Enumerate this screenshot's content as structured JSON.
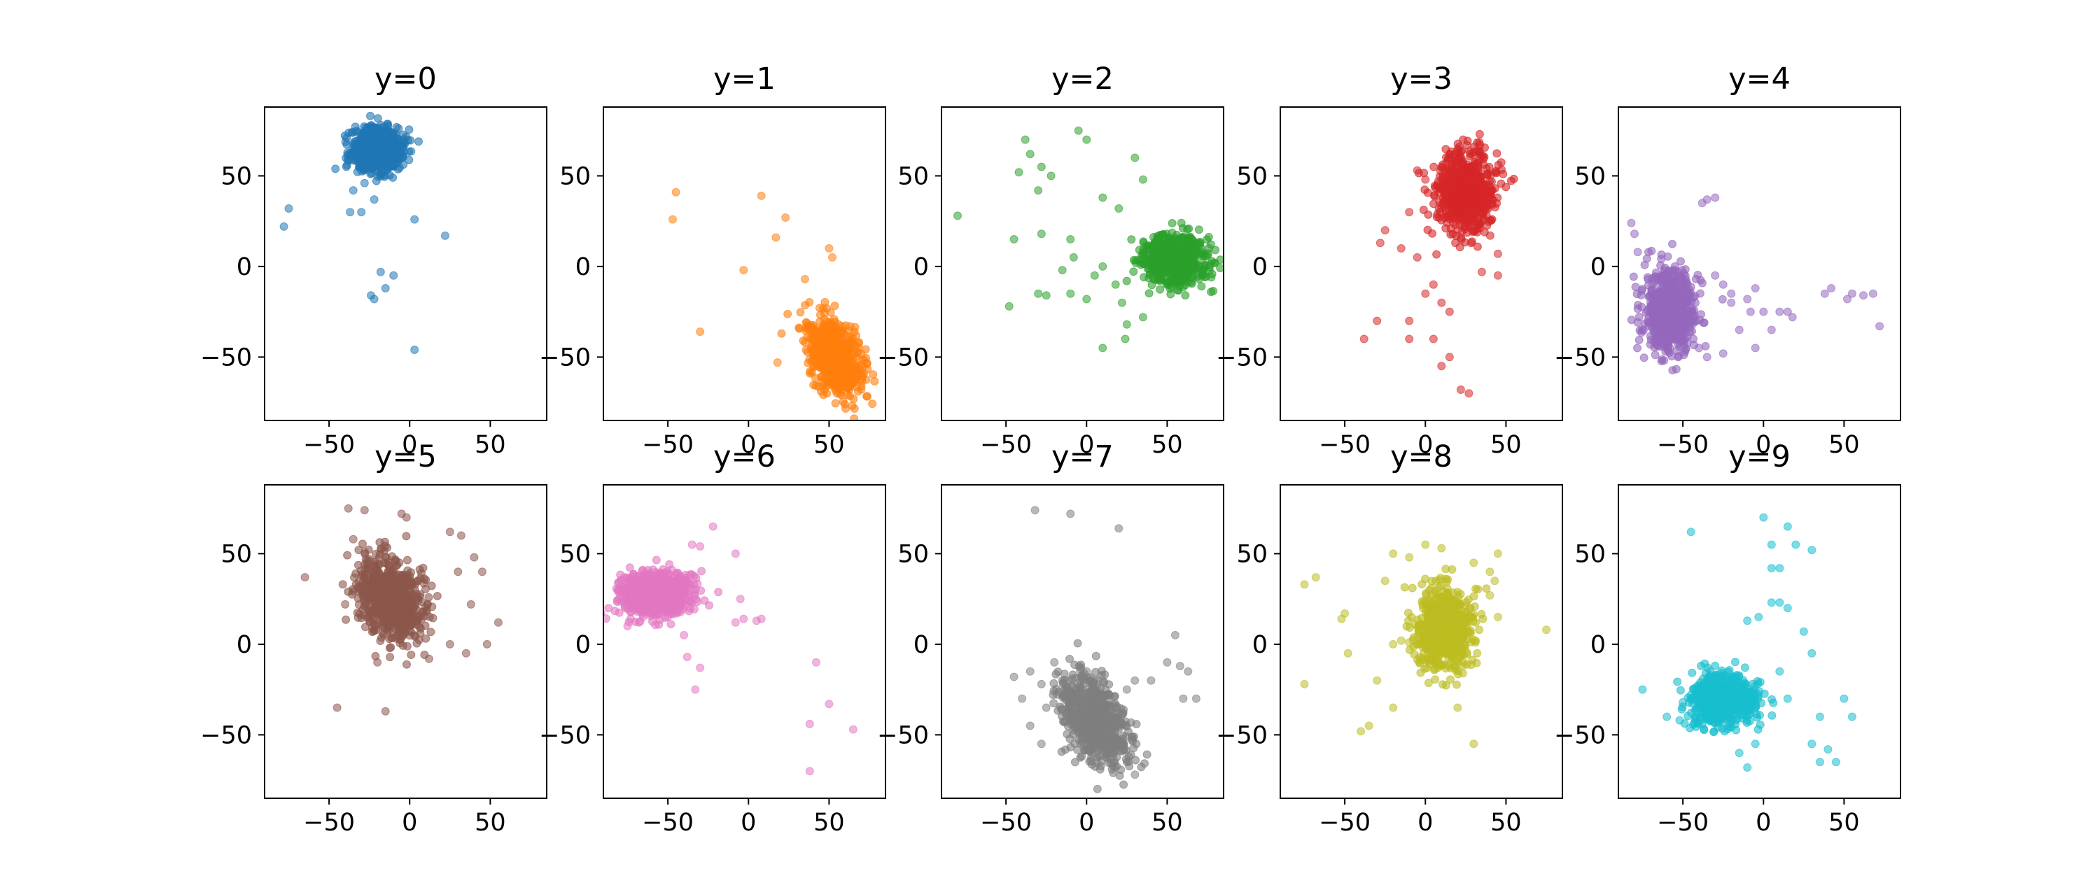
{
  "chart_data": [
    {
      "type": "scatter",
      "title": "y=0",
      "color": "#1f77b4",
      "xlim": [
        -90,
        85
      ],
      "ylim": [
        -85,
        88
      ],
      "xticks": [
        -50,
        0,
        50
      ],
      "yticks": [
        -50,
        0,
        50
      ],
      "cluster": {
        "cx": -20,
        "cy": 65,
        "sx": 8,
        "sy": 6,
        "n": 700,
        "rot": 0
      },
      "outliers": [
        [
          -75,
          32
        ],
        [
          -78,
          22
        ],
        [
          -35,
          42
        ],
        [
          -37,
          30
        ],
        [
          -30,
          30
        ],
        [
          -28,
          46
        ],
        [
          -22,
          37
        ],
        [
          3,
          26
        ],
        [
          22,
          17
        ],
        [
          -18,
          -3
        ],
        [
          -10,
          -5
        ],
        [
          -15,
          -12
        ],
        [
          -24,
          -16
        ],
        [
          -22,
          -18
        ],
        [
          3,
          -46
        ]
      ]
    },
    {
      "type": "scatter",
      "title": "y=1",
      "color": "#ff7f0e",
      "xlim": [
        -90,
        85
      ],
      "ylim": [
        -85,
        88
      ],
      "xticks": [
        -50,
        0,
        50
      ],
      "yticks": [
        -50,
        0,
        50
      ],
      "cluster": {
        "cx": 53,
        "cy": -50,
        "sx": 7,
        "sy": 11,
        "n": 700,
        "rot": 0.6
      },
      "outliers": [
        [
          -45,
          41
        ],
        [
          -47,
          26
        ],
        [
          8,
          39
        ],
        [
          23,
          27
        ],
        [
          17,
          16
        ],
        [
          50,
          10
        ],
        [
          52,
          5
        ],
        [
          35,
          -7
        ],
        [
          -3,
          -2
        ],
        [
          -30,
          -36
        ],
        [
          18,
          -53
        ]
      ]
    },
    {
      "type": "scatter",
      "title": "y=2",
      "color": "#2ca02c",
      "xlim": [
        -90,
        85
      ],
      "ylim": [
        -85,
        88
      ],
      "xticks": [
        -50,
        0,
        50
      ],
      "yticks": [
        -50,
        0,
        50
      ],
      "cluster": {
        "cx": 55,
        "cy": 3,
        "sx": 10,
        "sy": 7,
        "n": 700,
        "rot": 0
      },
      "outliers": [
        [
          -80,
          28
        ],
        [
          -38,
          70
        ],
        [
          -35,
          62
        ],
        [
          -28,
          55
        ],
        [
          -42,
          52
        ],
        [
          -30,
          42
        ],
        [
          -22,
          50
        ],
        [
          -5,
          75
        ],
        [
          0,
          70
        ],
        [
          30,
          60
        ],
        [
          35,
          48
        ],
        [
          10,
          38
        ],
        [
          20,
          32
        ],
        [
          -45,
          15
        ],
        [
          -28,
          18
        ],
        [
          -10,
          15
        ],
        [
          -8,
          5
        ],
        [
          5,
          -5
        ],
        [
          10,
          0
        ],
        [
          18,
          -10
        ],
        [
          22,
          -20
        ],
        [
          -48,
          -22
        ],
        [
          -30,
          -15
        ],
        [
          -25,
          -16
        ],
        [
          -10,
          -15
        ],
        [
          0,
          -18
        ],
        [
          25,
          -32
        ],
        [
          24,
          -40
        ],
        [
          10,
          -45
        ],
        [
          35,
          -28
        ],
        [
          -15,
          -2
        ]
      ]
    },
    {
      "type": "scatter",
      "title": "y=3",
      "color": "#d62728",
      "xlim": [
        -90,
        85
      ],
      "ylim": [
        -85,
        88
      ],
      "xticks": [
        -50,
        0,
        50
      ],
      "yticks": [
        -50,
        0,
        50
      ],
      "cluster": {
        "cx": 25,
        "cy": 42,
        "sx": 9,
        "sy": 11,
        "n": 700,
        "rot": 0
      },
      "outliers": [
        [
          -5,
          53
        ],
        [
          0,
          48
        ],
        [
          -10,
          30
        ],
        [
          -25,
          20
        ],
        [
          -28,
          13
        ],
        [
          -15,
          10
        ],
        [
          -5,
          5
        ],
        [
          5,
          -10
        ],
        [
          0,
          -15
        ],
        [
          10,
          -20
        ],
        [
          15,
          -25
        ],
        [
          -10,
          -30
        ],
        [
          -30,
          -30
        ],
        [
          -38,
          -40
        ],
        [
          -10,
          -40
        ],
        [
          5,
          -40
        ],
        [
          15,
          -50
        ],
        [
          10,
          -55
        ],
        [
          22,
          -68
        ],
        [
          27,
          -70
        ],
        [
          45,
          -5
        ],
        [
          35,
          -3
        ],
        [
          45,
          7
        ],
        [
          20,
          20
        ]
      ]
    },
    {
      "type": "scatter",
      "title": "y=4",
      "color": "#9467bd",
      "xlim": [
        -90,
        85
      ],
      "ylim": [
        -85,
        88
      ],
      "xticks": [
        -50,
        0,
        50
      ],
      "yticks": [
        -50,
        0,
        50
      ],
      "cluster": {
        "cx": -58,
        "cy": -25,
        "sx": 8,
        "sy": 11,
        "n": 700,
        "rot": 0
      },
      "outliers": [
        [
          -82,
          24
        ],
        [
          -78,
          8
        ],
        [
          -80,
          18
        ],
        [
          -35,
          37
        ],
        [
          -30,
          38
        ],
        [
          -38,
          35
        ],
        [
          -30,
          -5
        ],
        [
          -25,
          -10
        ],
        [
          -20,
          -15
        ],
        [
          -10,
          -18
        ],
        [
          -8,
          -25
        ],
        [
          0,
          -25
        ],
        [
          10,
          -25
        ],
        [
          -15,
          -35
        ],
        [
          -25,
          -48
        ],
        [
          -35,
          -50
        ],
        [
          -40,
          -45
        ],
        [
          -5,
          -45
        ],
        [
          5,
          -35
        ],
        [
          15,
          -25
        ],
        [
          18,
          -28
        ],
        [
          38,
          -15
        ],
        [
          42,
          -12
        ],
        [
          55,
          -15
        ],
        [
          52,
          -18
        ],
        [
          68,
          -15
        ],
        [
          62,
          -16
        ],
        [
          72,
          -33
        ],
        [
          -20,
          -20
        ],
        [
          -5,
          -12
        ]
      ]
    },
    {
      "type": "scatter",
      "title": "y=5",
      "color": "#8c564b",
      "xlim": [
        -90,
        85
      ],
      "ylim": [
        -85,
        88
      ],
      "xticks": [
        -50,
        0,
        50
      ],
      "yticks": [
        -50,
        0,
        50
      ],
      "cluster": {
        "cx": -12,
        "cy": 25,
        "sx": 9,
        "sy": 12,
        "n": 700,
        "rot": 0.55
      },
      "outliers": [
        [
          -65,
          37
        ],
        [
          -38,
          75
        ],
        [
          -28,
          74
        ],
        [
          -5,
          72
        ],
        [
          -2,
          70
        ],
        [
          -35,
          58
        ],
        [
          -30,
          30
        ],
        [
          -40,
          22
        ],
        [
          -20,
          -10
        ],
        [
          -15,
          -37
        ],
        [
          -45,
          -35
        ],
        [
          25,
          62
        ],
        [
          32,
          60
        ],
        [
          40,
          48
        ],
        [
          45,
          40
        ],
        [
          30,
          40
        ],
        [
          38,
          22
        ],
        [
          35,
          -5
        ],
        [
          48,
          0
        ],
        [
          55,
          12
        ],
        [
          25,
          0
        ],
        [
          12,
          -8
        ]
      ]
    },
    {
      "type": "scatter",
      "title": "y=6",
      "color": "#e377c2",
      "xlim": [
        -90,
        85
      ],
      "ylim": [
        -85,
        88
      ],
      "xticks": [
        -50,
        0,
        50
      ],
      "yticks": [
        -50,
        0,
        50
      ],
      "cluster": {
        "cx": -58,
        "cy": 28,
        "sx": 12,
        "sy": 6,
        "n": 700,
        "rot": 0
      },
      "outliers": [
        [
          -75,
          10
        ],
        [
          -68,
          12
        ],
        [
          -30,
          54
        ],
        [
          -22,
          65
        ],
        [
          -35,
          55
        ],
        [
          -8,
          50
        ],
        [
          -5,
          25
        ],
        [
          -8,
          12
        ],
        [
          -3,
          14
        ],
        [
          5,
          13
        ],
        [
          8,
          14
        ],
        [
          -40,
          5
        ],
        [
          -38,
          -7
        ],
        [
          -30,
          -13
        ],
        [
          -33,
          -25
        ],
        [
          42,
          -10
        ],
        [
          50,
          -33
        ],
        [
          38,
          -44
        ],
        [
          65,
          -47
        ],
        [
          38,
          -70
        ]
      ]
    },
    {
      "type": "scatter",
      "title": "y=7",
      "color": "#7f7f7f",
      "xlim": [
        -90,
        85
      ],
      "ylim": [
        -85,
        88
      ],
      "xticks": [
        -50,
        0,
        50
      ],
      "yticks": [
        -50,
        0,
        50
      ],
      "cluster": {
        "cx": 5,
        "cy": -42,
        "sx": 8,
        "sy": 14,
        "n": 700,
        "rot": 0.6
      },
      "outliers": [
        [
          -32,
          74
        ],
        [
          -10,
          72
        ],
        [
          20,
          64
        ],
        [
          -45,
          -18
        ],
        [
          -40,
          -30
        ],
        [
          -35,
          -15
        ],
        [
          -28,
          -22
        ],
        [
          -20,
          -10
        ],
        [
          -15,
          -20
        ],
        [
          -25,
          -35
        ],
        [
          -35,
          -45
        ],
        [
          -28,
          -55
        ],
        [
          0,
          -15
        ],
        [
          5,
          -20
        ],
        [
          25,
          -25
        ],
        [
          30,
          -20
        ],
        [
          40,
          -20
        ],
        [
          50,
          -10
        ],
        [
          55,
          5
        ],
        [
          58,
          -12
        ],
        [
          63,
          -15
        ],
        [
          68,
          -30
        ],
        [
          60,
          -30
        ],
        [
          30,
          -72
        ],
        [
          25,
          -65
        ]
      ]
    },
    {
      "type": "scatter",
      "title": "y=8",
      "color": "#bcbd22",
      "xlim": [
        -90,
        85
      ],
      "ylim": [
        -85,
        88
      ],
      "xticks": [
        -50,
        0,
        50
      ],
      "yticks": [
        -50,
        0,
        50
      ],
      "cluster": {
        "cx": 12,
        "cy": 8,
        "sx": 9,
        "sy": 11,
        "n": 700,
        "rot": 0
      },
      "outliers": [
        [
          -75,
          33
        ],
        [
          -68,
          37
        ],
        [
          -50,
          17
        ],
        [
          -52,
          14
        ],
        [
          -20,
          50
        ],
        [
          -10,
          48
        ],
        [
          0,
          55
        ],
        [
          10,
          53
        ],
        [
          30,
          45
        ],
        [
          45,
          50
        ],
        [
          40,
          40
        ],
        [
          43,
          35
        ],
        [
          -25,
          35
        ],
        [
          -20,
          0
        ],
        [
          -15,
          2
        ],
        [
          -10,
          1
        ],
        [
          -5,
          0
        ],
        [
          -30,
          -20
        ],
        [
          -20,
          -35
        ],
        [
          -35,
          -45
        ],
        [
          -40,
          -48
        ],
        [
          -75,
          -22
        ],
        [
          -48,
          -5
        ],
        [
          30,
          -55
        ],
        [
          75,
          8
        ],
        [
          45,
          15
        ],
        [
          40,
          27
        ],
        [
          20,
          -35
        ]
      ]
    },
    {
      "type": "scatter",
      "title": "y=9",
      "color": "#17becf",
      "xlim": [
        -90,
        85
      ],
      "ylim": [
        -85,
        88
      ],
      "xticks": [
        -50,
        0,
        50
      ],
      "yticks": [
        -50,
        0,
        50
      ],
      "cluster": {
        "cx": -25,
        "cy": -30,
        "sx": 10,
        "sy": 7,
        "n": 700,
        "rot": 0
      },
      "outliers": [
        [
          -75,
          -25
        ],
        [
          -60,
          -40
        ],
        [
          -50,
          -32
        ],
        [
          -52,
          -42
        ],
        [
          -45,
          62
        ],
        [
          0,
          70
        ],
        [
          5,
          55
        ],
        [
          15,
          65
        ],
        [
          20,
          55
        ],
        [
          10,
          42
        ],
        [
          5,
          42
        ],
        [
          30,
          52
        ],
        [
          5,
          23
        ],
        [
          10,
          23
        ],
        [
          15,
          20
        ],
        [
          -3,
          15
        ],
        [
          -10,
          13
        ],
        [
          25,
          7
        ],
        [
          30,
          -5
        ],
        [
          10,
          -15
        ],
        [
          15,
          -30
        ],
        [
          30,
          -55
        ],
        [
          35,
          -65
        ],
        [
          40,
          -58
        ],
        [
          45,
          -65
        ],
        [
          50,
          -30
        ],
        [
          55,
          -40
        ],
        [
          -15,
          -60
        ],
        [
          -10,
          -68
        ],
        [
          -5,
          -55
        ],
        [
          35,
          -40
        ]
      ]
    }
  ]
}
